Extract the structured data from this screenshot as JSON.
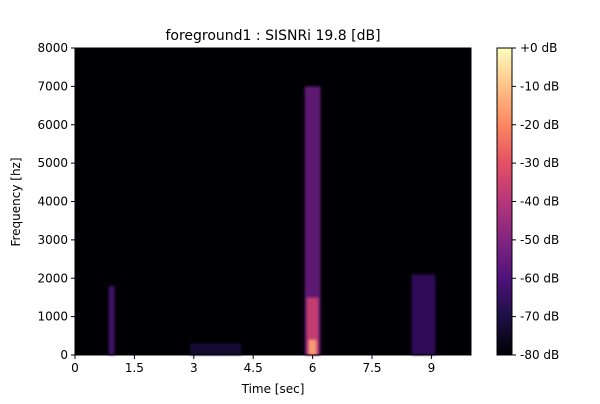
{
  "chart_data": {
    "type": "heatmap",
    "title": "foreground1 : SISNRi 19.8 [dB]",
    "xlabel": "Time [sec]",
    "ylabel": "Frequency [hz]",
    "xlim": [
      0,
      10
    ],
    "ylim": [
      0,
      8000
    ],
    "x_ticks": [
      0,
      1.5,
      3,
      4.5,
      6,
      7.5,
      9
    ],
    "x_tick_labels": [
      "0",
      "1.5",
      "3",
      "4.5",
      "6",
      "7.5",
      "9"
    ],
    "y_ticks": [
      0,
      1000,
      2000,
      3000,
      4000,
      5000,
      6000,
      7000,
      8000
    ],
    "y_tick_labels": [
      "0",
      "1000",
      "2000",
      "3000",
      "4000",
      "5000",
      "6000",
      "7000",
      "8000"
    ],
    "grid": false,
    "colorbar": {
      "colormap": "magma",
      "range_db": [
        -80,
        0
      ],
      "ticks": [
        0,
        -10,
        -20,
        -30,
        -40,
        -50,
        -60,
        -70,
        -80
      ],
      "tick_labels": [
        "+0 dB",
        "-10 dB",
        "-20 dB",
        "-30 dB",
        "-40 dB",
        "-50 dB",
        "-60 dB",
        "-70 dB",
        "-80 dB"
      ]
    },
    "energy_regions": [
      {
        "t_start": 0.85,
        "t_end": 1.0,
        "f_low": 0,
        "f_high": 1800,
        "level_db": -62
      },
      {
        "t_start": 2.9,
        "t_end": 4.2,
        "f_low": 0,
        "f_high": 300,
        "level_db": -72
      },
      {
        "t_start": 5.8,
        "t_end": 6.2,
        "f_low": 0,
        "f_high": 7000,
        "level_db": -55
      },
      {
        "t_start": 5.85,
        "t_end": 6.15,
        "f_low": 0,
        "f_high": 1500,
        "level_db": -35
      },
      {
        "t_start": 5.9,
        "t_end": 6.1,
        "f_low": 0,
        "f_high": 400,
        "level_db": -15
      },
      {
        "t_start": 8.5,
        "t_end": 9.1,
        "f_low": 0,
        "f_high": 2100,
        "level_db": -65
      }
    ]
  }
}
